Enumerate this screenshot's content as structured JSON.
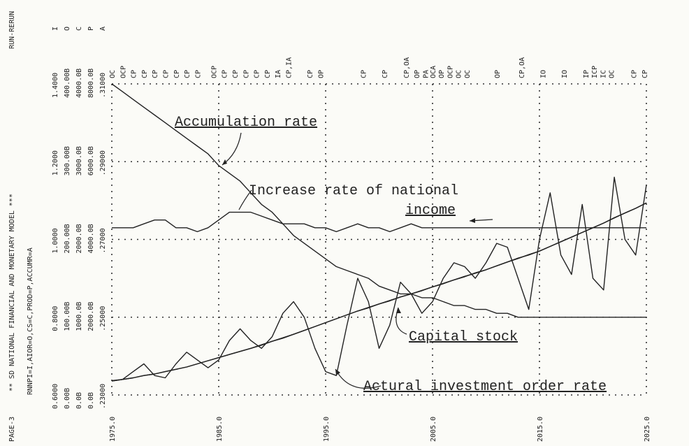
{
  "chart_data": {
    "type": "line",
    "page": "PAGE-3",
    "title": "** SD NATIONAL FINANCIAL AND MONETARY MODEL ***",
    "run": "RUN-RERUN",
    "subtitle": "RNNPI=I,AIOR=O,CS=C,PROD=P,ACCUMR=A",
    "annotations": [
      "Accumulation rate",
      "Increase rate of national",
      "income",
      "Capital stock",
      "Actural investment order rate"
    ],
    "x": [
      1975,
      1976,
      1977,
      1978,
      1979,
      1980,
      1981,
      1982,
      1983,
      1984,
      1985,
      1986,
      1987,
      1988,
      1989,
      1990,
      1991,
      1992,
      1993,
      1994,
      1995,
      1996,
      1997,
      1998,
      1999,
      2000,
      2001,
      2002,
      2003,
      2004,
      2005,
      2006,
      2007,
      2008,
      2009,
      2010,
      2011,
      2012,
      2013,
      2014,
      2015,
      2016,
      2017,
      2018,
      2019,
      2020,
      2021,
      2022,
      2023,
      2024,
      2025
    ],
    "xlim": [
      1975,
      2025
    ],
    "xticks": [
      {
        "value": 1975,
        "label": "1975.0"
      },
      {
        "value": 1985,
        "label": "1985.0"
      },
      {
        "value": 1995,
        "label": "1995.0"
      },
      {
        "value": 2005,
        "label": "2005.0"
      },
      {
        "value": 2015,
        "label": "2015.0"
      },
      {
        "value": 2025,
        "label": "2025.0"
      }
    ],
    "grid": true,
    "series": [
      {
        "name": "I",
        "color": "#222222",
        "ylim": [
          0.6,
          1.4
        ],
        "yticks": [
          {
            "value": 0.6,
            "label": "0.6000"
          },
          {
            "value": 0.8,
            "label": "0.8000"
          },
          {
            "value": 1.0,
            "label": "1.0000"
          },
          {
            "value": 1.2,
            "label": "1.2000"
          },
          {
            "value": 1.4,
            "label": "1.4000"
          }
        ],
        "values": [
          1.03,
          1.03,
          1.03,
          1.04,
          1.05,
          1.05,
          1.03,
          1.03,
          1.02,
          1.03,
          1.05,
          1.07,
          1.07,
          1.07,
          1.06,
          1.05,
          1.04,
          1.04,
          1.04,
          1.03,
          1.03,
          1.02,
          1.03,
          1.04,
          1.03,
          1.03,
          1.02,
          1.03,
          1.04,
          1.03,
          1.03,
          1.03,
          1.03,
          1.03,
          1.03,
          1.03,
          1.03,
          1.03,
          1.03,
          1.03,
          1.03,
          1.03,
          1.03,
          1.03,
          1.03,
          1.03,
          1.03,
          1.03,
          1.03,
          1.03,
          1.03
        ]
      },
      {
        "name": "O",
        "color": "#222222",
        "ylim": [
          0,
          400
        ],
        "yticks": [
          {
            "value": 0,
            "label": "0.00B"
          },
          {
            "value": 100,
            "label": "100.00B"
          },
          {
            "value": 200,
            "label": "200.00B"
          },
          {
            "value": 300,
            "label": "300.00B"
          },
          {
            "value": 400,
            "label": "400.00B"
          }
        ],
        "values": [
          18,
          20,
          30,
          40,
          25,
          22,
          40,
          55,
          45,
          35,
          45,
          70,
          85,
          70,
          60,
          75,
          105,
          120,
          100,
          60,
          30,
          25,
          90,
          150,
          120,
          60,
          90,
          145,
          130,
          105,
          120,
          150,
          170,
          165,
          150,
          170,
          195,
          190,
          150,
          110,
          200,
          260,
          180,
          155,
          245,
          150,
          135,
          280,
          200,
          180,
          270
        ]
      },
      {
        "name": "C",
        "color": "#222222",
        "ylim": [
          0,
          4000
        ],
        "yticks": [
          {
            "value": 0,
            "label": "0.0B"
          },
          {
            "value": 1000,
            "label": "1000.0B"
          },
          {
            "value": 2000,
            "label": "2000.0B"
          },
          {
            "value": 3000,
            "label": "3000.0B"
          },
          {
            "value": 4000,
            "label": "4000.0B"
          }
        ],
        "values": [
          180,
          200,
          220,
          250,
          270,
          300,
          330,
          360,
          400,
          440,
          480,
          520,
          560,
          600,
          640,
          690,
          730,
          780,
          830,
          880,
          930,
          980,
          1030,
          1080,
          1120,
          1170,
          1210,
          1260,
          1300,
          1340,
          1390,
          1430,
          1480,
          1520,
          1570,
          1610,
          1660,
          1710,
          1760,
          1800,
          1850,
          1910,
          1970,
          2030,
          2090,
          2150,
          2210,
          2280,
          2340,
          2400,
          2470
        ]
      },
      {
        "name": "P",
        "color": "#222222",
        "ylim": [
          0,
          8000
        ],
        "yticks": [
          {
            "value": 0,
            "label": "0.0B"
          },
          {
            "value": 2000,
            "label": "2000.0B"
          },
          {
            "value": 4000,
            "label": "4000.0B"
          },
          {
            "value": 6000,
            "label": "6000.0B"
          },
          {
            "value": 8000,
            "label": "8000.0B"
          }
        ],
        "values": [
          370,
          400,
          440,
          500,
          540,
          600,
          660,
          720,
          800,
          880,
          960,
          1040,
          1120,
          1200,
          1290,
          1380,
          1470,
          1560,
          1660,
          1760,
          1860,
          1960,
          2060,
          2160,
          2250,
          2340,
          2430,
          2520,
          2600,
          2690,
          2780,
          2870,
          2960,
          3050,
          3130,
          3220,
          3320,
          3420,
          3510,
          3610,
          3700,
          3820,
          3940,
          4060,
          4180,
          4300,
          4420,
          4550,
          4680,
          4800,
          4940
        ]
      },
      {
        "name": "A",
        "color": "#222222",
        "ylim": [
          0.23,
          0.31
        ],
        "yticks": [
          {
            "value": 0.23,
            "label": ".23000"
          },
          {
            "value": 0.25,
            "label": ".25000"
          },
          {
            "value": 0.27,
            "label": ".27000"
          },
          {
            "value": 0.29,
            "label": ".29000"
          },
          {
            "value": 0.31,
            "label": ".31000"
          }
        ],
        "values": [
          0.31,
          0.308,
          0.306,
          0.304,
          0.302,
          0.3,
          0.298,
          0.296,
          0.294,
          0.292,
          0.289,
          0.287,
          0.285,
          0.282,
          0.279,
          0.277,
          0.274,
          0.271,
          0.269,
          0.267,
          0.265,
          0.263,
          0.262,
          0.261,
          0.26,
          0.258,
          0.257,
          0.256,
          0.256,
          0.255,
          0.255,
          0.254,
          0.253,
          0.253,
          0.252,
          0.252,
          0.251,
          0.251,
          0.25,
          0.25,
          0.25,
          0.25,
          0.25,
          0.25,
          0.25,
          0.25,
          0.25,
          0.25,
          0.25,
          0.25,
          0.25
        ]
      }
    ],
    "overlap_marks": [
      {
        "x": 1975,
        "label": "OC"
      },
      {
        "x": 1976,
        "label": "OCP"
      },
      {
        "x": 1977,
        "label": "CP"
      },
      {
        "x": 1978,
        "label": "CP"
      },
      {
        "x": 1979,
        "label": "CP"
      },
      {
        "x": 1980,
        "label": "CP"
      },
      {
        "x": 1981,
        "label": "CP"
      },
      {
        "x": 1982,
        "label": "CP"
      },
      {
        "x": 1983,
        "label": "CP"
      },
      {
        "x": 1984.5,
        "label": "OCP"
      },
      {
        "x": 1985.5,
        "label": "CP"
      },
      {
        "x": 1986.5,
        "label": "CP"
      },
      {
        "x": 1987.5,
        "label": "CP"
      },
      {
        "x": 1988.5,
        "label": "CP"
      },
      {
        "x": 1989.5,
        "label": "CP"
      },
      {
        "x": 1990.5,
        "label": "IA"
      },
      {
        "x": 1991.5,
        "label": "CP,IA"
      },
      {
        "x": 1993.5,
        "label": "CP"
      },
      {
        "x": 1994.5,
        "label": "OP"
      },
      {
        "x": 1998.5,
        "label": "CP"
      },
      {
        "x": 2000.5,
        "label": "CP"
      },
      {
        "x": 2002.5,
        "label": "CP,OA"
      },
      {
        "x": 2003.5,
        "label": "OP"
      },
      {
        "x": 2004.3,
        "label": "PA"
      },
      {
        "x": 2005,
        "label": "OCA"
      },
      {
        "x": 2005.8,
        "label": "OP"
      },
      {
        "x": 2006.6,
        "label": "OCP"
      },
      {
        "x": 2007.4,
        "label": "OC"
      },
      {
        "x": 2008.2,
        "label": "OC"
      },
      {
        "x": 2011,
        "label": "OP"
      },
      {
        "x": 2013.3,
        "label": "CP,OA"
      },
      {
        "x": 2015.3,
        "label": "IO"
      },
      {
        "x": 2017.3,
        "label": "IO"
      },
      {
        "x": 2019.3,
        "label": "IP"
      },
      {
        "x": 2020.1,
        "label": "ICP"
      },
      {
        "x": 2020.9,
        "label": "IC"
      },
      {
        "x": 2021.7,
        "label": "OC"
      },
      {
        "x": 2023.8,
        "label": "CP"
      },
      {
        "x": 2024.8,
        "label": "CP"
      }
    ]
  }
}
